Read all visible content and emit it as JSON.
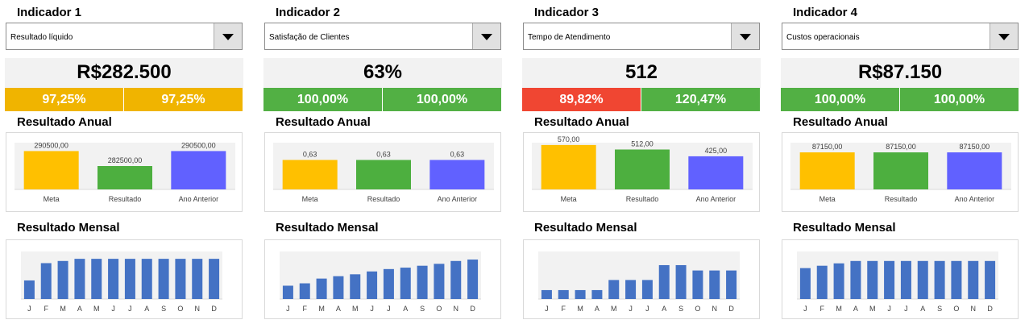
{
  "colors": {
    "meta": "#ffc000",
    "resultado": "#4daf3f",
    "ano_anterior": "#6161ff",
    "monthly": "#4472c4",
    "pct_yellow": "#f0b400",
    "pct_green": "#52b044",
    "pct_red": "#f04632",
    "plot_bg": "#f2f2f2"
  },
  "dropdown_icon": "chevron-down-icon",
  "panels": [
    {
      "title": "Indicador 1",
      "dropdown": "Resultado líquido",
      "big_number": "R$282.500",
      "pct_left": "97,25%",
      "pct_left_color": "yellow",
      "pct_right": "97,25%",
      "pct_right_color": "yellow",
      "annual_title": "Resultado Anual",
      "monthly_title": "Resultado Mensal"
    },
    {
      "title": "Indicador 2",
      "dropdown": "Satisfação de Clientes",
      "big_number": "63%",
      "pct_left": "100,00%",
      "pct_left_color": "green",
      "pct_right": "100,00%",
      "pct_right_color": "green",
      "annual_title": "Resultado Anual",
      "monthly_title": "Resultado Mensal"
    },
    {
      "title": "Indicador 3",
      "dropdown": "Tempo de Atendimento",
      "big_number": "512",
      "pct_left": "89,82%",
      "pct_left_color": "red",
      "pct_right": "120,47%",
      "pct_right_color": "green",
      "annual_title": "Resultado Anual",
      "monthly_title": "Resultado Mensal"
    },
    {
      "title": "Indicador 4",
      "dropdown": "Custos operacionais",
      "big_number": "R$87.150",
      "pct_left": "100,00%",
      "pct_left_color": "green",
      "pct_right": "100,00%",
      "pct_right_color": "green",
      "annual_title": "Resultado Anual",
      "monthly_title": "Resultado Mensal"
    }
  ],
  "chart_data": [
    {
      "type": "bar",
      "title": "Resultado Anual",
      "categories": [
        "Meta",
        "Resultado",
        "Ano Anterior"
      ],
      "values": [
        290500,
        282500,
        290500
      ],
      "labels": [
        "290500,00",
        "282500,00",
        "290500,00"
      ],
      "ylim": [
        270000,
        295000
      ]
    },
    {
      "type": "bar",
      "title": "Resultado Mensal",
      "categories": [
        "J",
        "F",
        "M",
        "A",
        "M",
        "J",
        "J",
        "A",
        "S",
        "O",
        "N",
        "D"
      ],
      "values": [
        21500,
        41500,
        44000,
        46500,
        46500,
        46500,
        46500,
        46500,
        46500,
        46500,
        46500,
        46500
      ],
      "ylim": [
        0,
        55000
      ]
    },
    {
      "type": "bar",
      "title": "Resultado Anual",
      "categories": [
        "Meta",
        "Resultado",
        "Ano Anterior"
      ],
      "values": [
        0.63,
        0.63,
        0.63
      ],
      "labels": [
        "0,63",
        "0,63",
        "0,63"
      ],
      "ylim": [
        0,
        1.0
      ]
    },
    {
      "type": "bar",
      "title": "Resultado Mensal",
      "categories": [
        "J",
        "F",
        "M",
        "A",
        "M",
        "J",
        "J",
        "A",
        "S",
        "O",
        "N",
        "D"
      ],
      "values": [
        0.28,
        0.33,
        0.43,
        0.48,
        0.52,
        0.58,
        0.63,
        0.66,
        0.7,
        0.74,
        0.8,
        0.83
      ],
      "ylim": [
        0,
        1.0
      ]
    },
    {
      "type": "bar",
      "title": "Resultado Anual",
      "categories": [
        "Meta",
        "Resultado",
        "Ano Anterior"
      ],
      "values": [
        570,
        512,
        425
      ],
      "labels": [
        "570,00",
        "512,00",
        "425,00"
      ],
      "ylim": [
        0,
        600
      ]
    },
    {
      "type": "bar",
      "title": "Resultado Mensal",
      "categories": [
        "J",
        "F",
        "M",
        "A",
        "M",
        "J",
        "J",
        "A",
        "S",
        "O",
        "N",
        "D"
      ],
      "values": [
        15,
        15,
        15,
        15,
        32,
        32,
        32,
        57,
        57,
        48,
        48,
        48
      ],
      "ylim": [
        0,
        80
      ]
    },
    {
      "type": "bar",
      "title": "Resultado Anual",
      "categories": [
        "Meta",
        "Resultado",
        "Ano Anterior"
      ],
      "values": [
        87150,
        87150,
        87150
      ],
      "labels": [
        "87150,00",
        "87150,00",
        "87150,00"
      ],
      "ylim": [
        0,
        110000
      ]
    },
    {
      "type": "bar",
      "title": "Resultado Mensal",
      "categories": [
        "J",
        "F",
        "M",
        "A",
        "M",
        "J",
        "J",
        "A",
        "S",
        "O",
        "N",
        "D"
      ],
      "values": [
        6500,
        7000,
        7500,
        8000,
        8000,
        8000,
        8000,
        8000,
        8000,
        8000,
        8000,
        8000
      ],
      "ylim": [
        0,
        10000
      ]
    }
  ]
}
